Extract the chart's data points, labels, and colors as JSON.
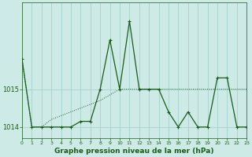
{
  "hours": [
    0,
    1,
    2,
    3,
    4,
    5,
    6,
    7,
    8,
    9,
    10,
    11,
    12,
    13,
    14,
    15,
    16,
    17,
    18,
    19,
    20,
    21,
    22,
    23
  ],
  "main_line": [
    1015.8,
    1014.0,
    1014.0,
    1014.0,
    1014.0,
    1014.0,
    1014.15,
    1014.15,
    1015.0,
    1016.3,
    1015.0,
    1016.8,
    1015.0,
    1015.0,
    1015.0,
    1014.4,
    1014.0,
    1014.4,
    1014.0,
    1014.0,
    1015.3,
    1015.3,
    1014.0,
    1014.0
  ],
  "dotted_line": [
    1015.8,
    1014.0,
    1014.0,
    1014.2,
    1014.3,
    1014.4,
    1014.5,
    1014.6,
    1014.7,
    1014.85,
    1015.0,
    1015.0,
    1015.0,
    1015.0,
    1015.0,
    1015.0,
    1015.0,
    1015.0,
    1015.0,
    1015.0,
    1015.0,
    1015.0,
    1015.0,
    1015.0
  ],
  "xlabel": "Graphe pression niveau de la mer (hPa)",
  "ytick_labels": [
    "1014",
    "1015"
  ],
  "ytick_vals": [
    1014,
    1015
  ],
  "ylim": [
    1013.7,
    1017.3
  ],
  "xlim": [
    0,
    23
  ],
  "bg_color": "#cdeae6",
  "line_color": "#1a5c1a",
  "grid_color": "#9ecdc8",
  "tick_label_color": "#1a5c1a",
  "xlabel_color": "#1a5c1a"
}
